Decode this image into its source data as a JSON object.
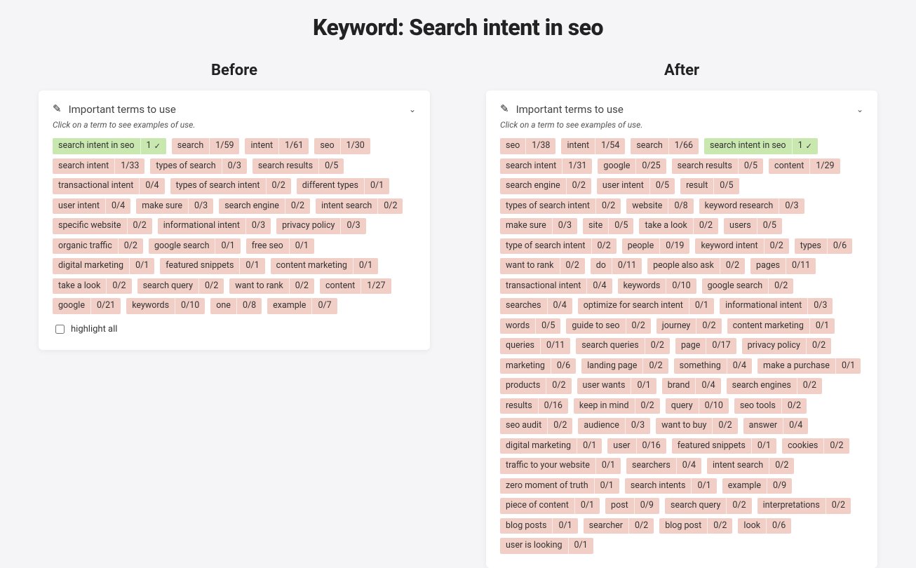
{
  "page_title": "Keyword: Search intent in seo",
  "labels": {
    "before": "Before",
    "after": "After",
    "card_title": "Important terms to use",
    "card_sub": "Click on a term to see examples of use.",
    "highlight_all": "highlight all"
  },
  "styling": {
    "page_background": "#f5f5f7",
    "card_background": "#ffffff",
    "term_default_bg": "#f1cfc7",
    "term_default_text": "#333333",
    "term_highlight_bg": "#c8e8b0",
    "term_highlight_text": "#333333",
    "title_color": "#111111",
    "font_family": "system-ui"
  },
  "before": {
    "show_highlight_all": true,
    "terms": [
      {
        "label": "search intent in seo",
        "count": "1",
        "highlight": true,
        "check": true
      },
      {
        "label": "search",
        "count": "1/59"
      },
      {
        "label": "intent",
        "count": "1/61"
      },
      {
        "label": "seo",
        "count": "1/30"
      },
      {
        "label": "search intent",
        "count": "1/33"
      },
      {
        "label": "types of search",
        "count": "0/3"
      },
      {
        "label": "search results",
        "count": "0/5"
      },
      {
        "label": "transactional intent",
        "count": "0/4"
      },
      {
        "label": "types of search intent",
        "count": "0/2"
      },
      {
        "label": "different types",
        "count": "0/1"
      },
      {
        "label": "user intent",
        "count": "0/4"
      },
      {
        "label": "make sure",
        "count": "0/3"
      },
      {
        "label": "search engine",
        "count": "0/2"
      },
      {
        "label": "intent search",
        "count": "0/2"
      },
      {
        "label": "specific website",
        "count": "0/2"
      },
      {
        "label": "informational intent",
        "count": "0/3"
      },
      {
        "label": "privacy policy",
        "count": "0/3"
      },
      {
        "label": "organic traffic",
        "count": "0/2"
      },
      {
        "label": "google search",
        "count": "0/1"
      },
      {
        "label": "free seo",
        "count": "0/1"
      },
      {
        "label": "digital marketing",
        "count": "0/1"
      },
      {
        "label": "featured snippets",
        "count": "0/1"
      },
      {
        "label": "content marketing",
        "count": "0/1"
      },
      {
        "label": "take a look",
        "count": "0/2"
      },
      {
        "label": "search query",
        "count": "0/2"
      },
      {
        "label": "want to rank",
        "count": "0/2"
      },
      {
        "label": "content",
        "count": "1/27"
      },
      {
        "label": "google",
        "count": "0/21"
      },
      {
        "label": "keywords",
        "count": "0/10"
      },
      {
        "label": "one",
        "count": "0/8"
      },
      {
        "label": "example",
        "count": "0/7"
      }
    ]
  },
  "after": {
    "show_highlight_all": false,
    "terms": [
      {
        "label": "seo",
        "count": "1/38"
      },
      {
        "label": "intent",
        "count": "1/54"
      },
      {
        "label": "search",
        "count": "1/66"
      },
      {
        "label": "search intent in seo",
        "count": "1",
        "highlight": true,
        "check": true
      },
      {
        "label": "search intent",
        "count": "1/31"
      },
      {
        "label": "google",
        "count": "0/25"
      },
      {
        "label": "search results",
        "count": "0/5"
      },
      {
        "label": "content",
        "count": "1/29"
      },
      {
        "label": "search engine",
        "count": "0/2"
      },
      {
        "label": "user intent",
        "count": "0/5"
      },
      {
        "label": "result",
        "count": "0/5"
      },
      {
        "label": "types of search intent",
        "count": "0/2"
      },
      {
        "label": "website",
        "count": "0/8"
      },
      {
        "label": "keyword research",
        "count": "0/3"
      },
      {
        "label": "make sure",
        "count": "0/3"
      },
      {
        "label": "site",
        "count": "0/5"
      },
      {
        "label": "take a look",
        "count": "0/2"
      },
      {
        "label": "users",
        "count": "0/5"
      },
      {
        "label": "type of search intent",
        "count": "0/2"
      },
      {
        "label": "people",
        "count": "0/19"
      },
      {
        "label": "keyword intent",
        "count": "0/2"
      },
      {
        "label": "types",
        "count": "0/6"
      },
      {
        "label": "want to rank",
        "count": "0/2"
      },
      {
        "label": "do",
        "count": "0/11"
      },
      {
        "label": "people also ask",
        "count": "0/2"
      },
      {
        "label": "pages",
        "count": "0/11"
      },
      {
        "label": "transactional intent",
        "count": "0/4"
      },
      {
        "label": "keywords",
        "count": "0/10"
      },
      {
        "label": "google search",
        "count": "0/2"
      },
      {
        "label": "searches",
        "count": "0/4"
      },
      {
        "label": "optimize for search intent",
        "count": "0/1"
      },
      {
        "label": "informational intent",
        "count": "0/3"
      },
      {
        "label": "words",
        "count": "0/5"
      },
      {
        "label": "guide to seo",
        "count": "0/2"
      },
      {
        "label": "journey",
        "count": "0/2"
      },
      {
        "label": "content marketing",
        "count": "0/1"
      },
      {
        "label": "queries",
        "count": "0/11"
      },
      {
        "label": "search queries",
        "count": "0/2"
      },
      {
        "label": "page",
        "count": "0/17"
      },
      {
        "label": "privacy policy",
        "count": "0/2"
      },
      {
        "label": "marketing",
        "count": "0/6"
      },
      {
        "label": "landing page",
        "count": "0/2"
      },
      {
        "label": "something",
        "count": "0/4"
      },
      {
        "label": "make a purchase",
        "count": "0/1"
      },
      {
        "label": "products",
        "count": "0/2"
      },
      {
        "label": "user wants",
        "count": "0/1"
      },
      {
        "label": "brand",
        "count": "0/4"
      },
      {
        "label": "search engines",
        "count": "0/2"
      },
      {
        "label": "results",
        "count": "0/16"
      },
      {
        "label": "keep in mind",
        "count": "0/2"
      },
      {
        "label": "query",
        "count": "0/10"
      },
      {
        "label": "seo tools",
        "count": "0/2"
      },
      {
        "label": "seo audit",
        "count": "0/2"
      },
      {
        "label": "audience",
        "count": "0/3"
      },
      {
        "label": "want to buy",
        "count": "0/2"
      },
      {
        "label": "answer",
        "count": "0/4"
      },
      {
        "label": "digital marketing",
        "count": "0/1"
      },
      {
        "label": "user",
        "count": "0/16"
      },
      {
        "label": "featured snippets",
        "count": "0/1"
      },
      {
        "label": "cookies",
        "count": "0/2"
      },
      {
        "label": "traffic to your website",
        "count": "0/1"
      },
      {
        "label": "searchers",
        "count": "0/4"
      },
      {
        "label": "intent search",
        "count": "0/2"
      },
      {
        "label": "zero moment of truth",
        "count": "0/1"
      },
      {
        "label": "search intents",
        "count": "0/1"
      },
      {
        "label": "example",
        "count": "0/9"
      },
      {
        "label": "piece of content",
        "count": "0/1"
      },
      {
        "label": "post",
        "count": "0/9"
      },
      {
        "label": "search query",
        "count": "0/2"
      },
      {
        "label": "interpretations",
        "count": "0/2"
      },
      {
        "label": "blog posts",
        "count": "0/1"
      },
      {
        "label": "searcher",
        "count": "0/2"
      },
      {
        "label": "blog post",
        "count": "0/2"
      },
      {
        "label": "look",
        "count": "0/6"
      },
      {
        "label": "user is looking",
        "count": "0/1"
      }
    ]
  }
}
